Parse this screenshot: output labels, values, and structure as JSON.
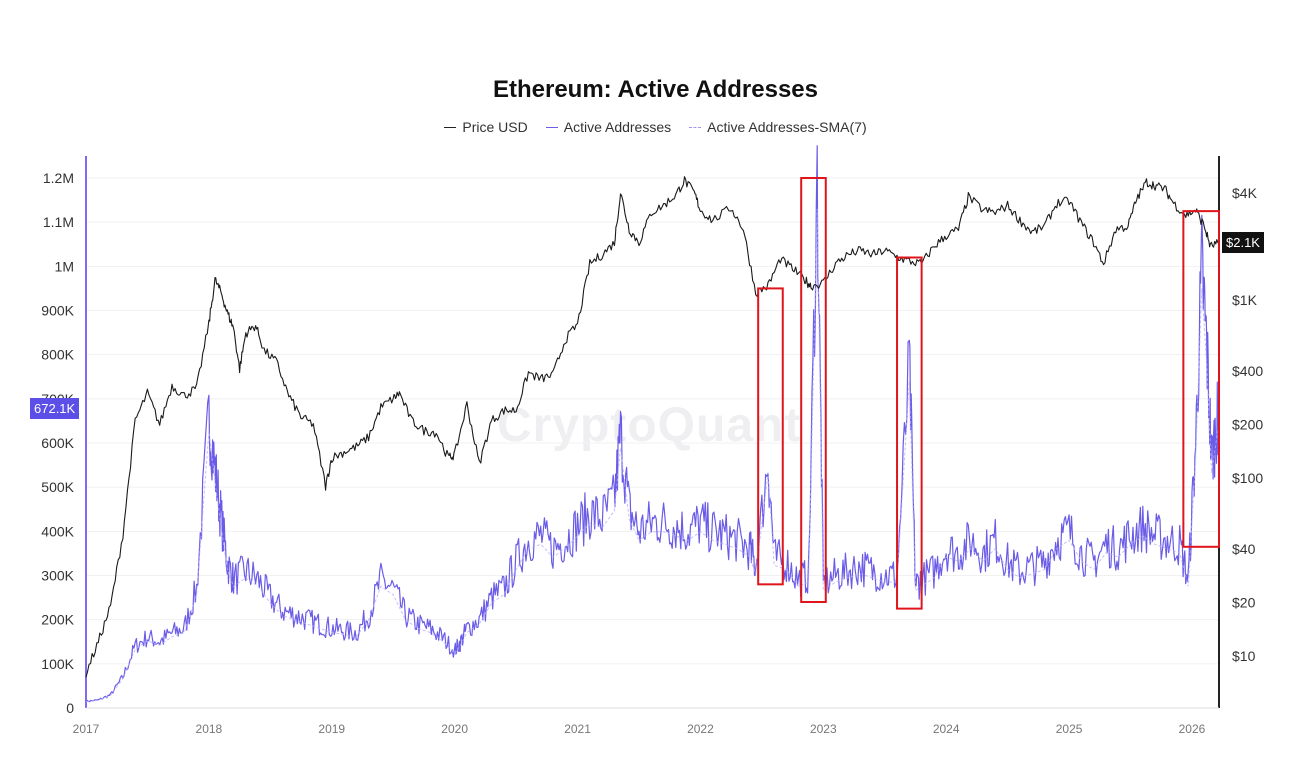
{
  "chart_data": {
    "type": "line",
    "title": "Ethereum: Active Addresses",
    "legend": [
      {
        "name": "Price USD",
        "color": "#222222",
        "style": "solid"
      },
      {
        "name": "Active Addresses",
        "color": "#6b5ce7",
        "style": "solid"
      },
      {
        "name": "Active Addresses-SMA(7)",
        "color": "#9f95f0",
        "style": "dashed"
      }
    ],
    "x_ticks": [
      "2017",
      "2018",
      "2019",
      "2020",
      "2021",
      "2022",
      "2023",
      "2024",
      "2025",
      "2026"
    ],
    "x_range": [
      2017.0,
      2026.22
    ],
    "left_axis": {
      "ticks": [
        "0",
        "100K",
        "200K",
        "300K",
        "400K",
        "500K",
        "600K",
        "700K",
        "800K",
        "900K",
        "1M",
        "1.1M",
        "1.2M"
      ],
      "range": [
        0,
        1200000
      ]
    },
    "right_axis": {
      "ticks": [
        "$10",
        "$20",
        "$40",
        "$100",
        "$200",
        "$400",
        "$1K",
        "$4K"
      ],
      "scale": "log",
      "range": [
        4,
        6000
      ]
    },
    "current_values": {
      "active_addresses": "672.1K",
      "price": "$2.1K"
    },
    "price_series": [
      [
        2017.0,
        8
      ],
      [
        2017.1,
        12
      ],
      [
        2017.2,
        19
      ],
      [
        2017.3,
        48
      ],
      [
        2017.4,
        210
      ],
      [
        2017.5,
        300
      ],
      [
        2017.6,
        200
      ],
      [
        2017.7,
        330
      ],
      [
        2017.8,
        290
      ],
      [
        2017.9,
        320
      ],
      [
        2018.0,
        740
      ],
      [
        2018.05,
        1300
      ],
      [
        2018.1,
        1100
      ],
      [
        2018.15,
        850
      ],
      [
        2018.2,
        700
      ],
      [
        2018.25,
        410
      ],
      [
        2018.3,
        650
      ],
      [
        2018.38,
        720
      ],
      [
        2018.45,
        520
      ],
      [
        2018.55,
        450
      ],
      [
        2018.65,
        290
      ],
      [
        2018.75,
        220
      ],
      [
        2018.85,
        200
      ],
      [
        2018.95,
        90
      ],
      [
        2019.0,
        130
      ],
      [
        2019.1,
        140
      ],
      [
        2019.2,
        150
      ],
      [
        2019.3,
        170
      ],
      [
        2019.4,
        250
      ],
      [
        2019.5,
        280
      ],
      [
        2019.55,
        300
      ],
      [
        2019.65,
        210
      ],
      [
        2019.75,
        185
      ],
      [
        2019.85,
        180
      ],
      [
        2019.95,
        130
      ],
      [
        2020.0,
        135
      ],
      [
        2020.1,
        260
      ],
      [
        2020.2,
        120
      ],
      [
        2020.3,
        210
      ],
      [
        2020.4,
        240
      ],
      [
        2020.5,
        240
      ],
      [
        2020.6,
        390
      ],
      [
        2020.7,
        360
      ],
      [
        2020.8,
        380
      ],
      [
        2020.9,
        600
      ],
      [
        2021.0,
        730
      ],
      [
        2021.1,
        1600
      ],
      [
        2021.2,
        1800
      ],
      [
        2021.3,
        2100
      ],
      [
        2021.35,
        4000
      ],
      [
        2021.42,
        2500
      ],
      [
        2021.5,
        2100
      ],
      [
        2021.6,
        3100
      ],
      [
        2021.7,
        3400
      ],
      [
        2021.8,
        3900
      ],
      [
        2021.87,
        4700
      ],
      [
        2021.95,
        4000
      ],
      [
        2022.0,
        3200
      ],
      [
        2022.1,
        2800
      ],
      [
        2022.25,
        3300
      ],
      [
        2022.35,
        2500
      ],
      [
        2022.45,
        1100
      ],
      [
        2022.55,
        1200
      ],
      [
        2022.65,
        1700
      ],
      [
        2022.75,
        1500
      ],
      [
        2022.85,
        1300
      ],
      [
        2022.9,
        1200
      ],
      [
        2023.0,
        1250
      ],
      [
        2023.1,
        1600
      ],
      [
        2023.2,
        1800
      ],
      [
        2023.3,
        1900
      ],
      [
        2023.4,
        1800
      ],
      [
        2023.5,
        1900
      ],
      [
        2023.6,
        1750
      ],
      [
        2023.7,
        1650
      ],
      [
        2023.8,
        1600
      ],
      [
        2023.9,
        2000
      ],
      [
        2024.0,
        2300
      ],
      [
        2024.1,
        2500
      ],
      [
        2024.18,
        3800
      ],
      [
        2024.3,
        3200
      ],
      [
        2024.4,
        3100
      ],
      [
        2024.5,
        3400
      ],
      [
        2024.6,
        2800
      ],
      [
        2024.7,
        2400
      ],
      [
        2024.8,
        2600
      ],
      [
        2024.9,
        3500
      ],
      [
        2025.0,
        3600
      ],
      [
        2025.1,
        2700
      ],
      [
        2025.2,
        2100
      ],
      [
        2025.28,
        1600
      ],
      [
        2025.38,
        2500
      ],
      [
        2025.48,
        2600
      ],
      [
        2025.55,
        3700
      ],
      [
        2025.63,
        4600
      ],
      [
        2025.7,
        4400
      ],
      [
        2025.78,
        4200
      ],
      [
        2025.85,
        3500
      ],
      [
        2025.95,
        3000
      ],
      [
        2026.03,
        3200
      ],
      [
        2026.1,
        2600
      ],
      [
        2026.15,
        2000
      ],
      [
        2026.22,
        2100
      ]
    ],
    "active_addresses_series": [
      [
        2017.0,
        15000
      ],
      [
        2017.1,
        18000
      ],
      [
        2017.2,
        30000
      ],
      [
        2017.3,
        70000
      ],
      [
        2017.4,
        140000
      ],
      [
        2017.5,
        160000
      ],
      [
        2017.6,
        150000
      ],
      [
        2017.7,
        170000
      ],
      [
        2017.8,
        180000
      ],
      [
        2017.9,
        270000
      ],
      [
        2018.0,
        660000
      ],
      [
        2018.05,
        540000
      ],
      [
        2018.1,
        430000
      ],
      [
        2018.15,
        330000
      ],
      [
        2018.2,
        290000
      ],
      [
        2018.3,
        310000
      ],
      [
        2018.4,
        290000
      ],
      [
        2018.5,
        250000
      ],
      [
        2018.6,
        220000
      ],
      [
        2018.7,
        210000
      ],
      [
        2018.8,
        200000
      ],
      [
        2018.9,
        190000
      ],
      [
        2019.0,
        180000
      ],
      [
        2019.1,
        175000
      ],
      [
        2019.2,
        170000
      ],
      [
        2019.3,
        210000
      ],
      [
        2019.4,
        290000
      ],
      [
        2019.5,
        270000
      ],
      [
        2019.6,
        210000
      ],
      [
        2019.7,
        190000
      ],
      [
        2019.8,
        180000
      ],
      [
        2019.9,
        160000
      ],
      [
        2020.0,
        130000
      ],
      [
        2020.05,
        150000
      ],
      [
        2020.1,
        180000
      ],
      [
        2020.2,
        200000
      ],
      [
        2020.3,
        250000
      ],
      [
        2020.4,
        270000
      ],
      [
        2020.5,
        330000
      ],
      [
        2020.6,
        380000
      ],
      [
        2020.7,
        390000
      ],
      [
        2020.8,
        360000
      ],
      [
        2020.9,
        380000
      ],
      [
        2021.0,
        410000
      ],
      [
        2021.1,
        440000
      ],
      [
        2021.2,
        430000
      ],
      [
        2021.3,
        470000
      ],
      [
        2021.35,
        620000
      ],
      [
        2021.42,
        450000
      ],
      [
        2021.5,
        400000
      ],
      [
        2021.6,
        420000
      ],
      [
        2021.7,
        420000
      ],
      [
        2021.8,
        410000
      ],
      [
        2021.9,
        400000
      ],
      [
        2022.0,
        420000
      ],
      [
        2022.1,
        400000
      ],
      [
        2022.2,
        390000
      ],
      [
        2022.3,
        380000
      ],
      [
        2022.4,
        360000
      ],
      [
        2022.45,
        320000
      ],
      [
        2022.55,
        560000
      ],
      [
        2022.6,
        340000
      ],
      [
        2022.7,
        330000
      ],
      [
        2022.8,
        290000
      ],
      [
        2022.88,
        300000
      ],
      [
        2022.95,
        1190000
      ],
      [
        2023.0,
        280000
      ],
      [
        2023.1,
        300000
      ],
      [
        2023.2,
        310000
      ],
      [
        2023.3,
        320000
      ],
      [
        2023.4,
        310000
      ],
      [
        2023.5,
        300000
      ],
      [
        2023.6,
        300000
      ],
      [
        2023.7,
        780000
      ],
      [
        2023.75,
        280000
      ],
      [
        2023.8,
        290000
      ],
      [
        2023.9,
        310000
      ],
      [
        2024.0,
        360000
      ],
      [
        2024.1,
        350000
      ],
      [
        2024.2,
        380000
      ],
      [
        2024.3,
        350000
      ],
      [
        2024.4,
        380000
      ],
      [
        2024.5,
        330000
      ],
      [
        2024.6,
        310000
      ],
      [
        2024.7,
        320000
      ],
      [
        2024.8,
        330000
      ],
      [
        2024.9,
        380000
      ],
      [
        2025.0,
        400000
      ],
      [
        2025.1,
        350000
      ],
      [
        2025.2,
        330000
      ],
      [
        2025.3,
        370000
      ],
      [
        2025.4,
        360000
      ],
      [
        2025.5,
        390000
      ],
      [
        2025.6,
        410000
      ],
      [
        2025.7,
        390000
      ],
      [
        2025.8,
        380000
      ],
      [
        2025.9,
        370000
      ],
      [
        2025.97,
        290000
      ],
      [
        2026.03,
        600000
      ],
      [
        2026.08,
        1000000
      ],
      [
        2026.12,
        820000
      ],
      [
        2026.16,
        560000
      ],
      [
        2026.2,
        640000
      ],
      [
        2026.22,
        672100
      ]
    ],
    "highlight_boxes": [
      {
        "from": 2022.47,
        "to": 2022.67,
        "low": 280000,
        "high": 950000
      },
      {
        "from": 2022.82,
        "to": 2023.02,
        "low": 240000,
        "high": 1200000
      },
      {
        "from": 2023.6,
        "to": 2023.8,
        "low": 225000,
        "high": 1020000
      },
      {
        "from": 2025.93,
        "to": 2026.22,
        "low": 365000,
        "high": 1125000
      }
    ],
    "watermark": "CryptoQuant"
  }
}
